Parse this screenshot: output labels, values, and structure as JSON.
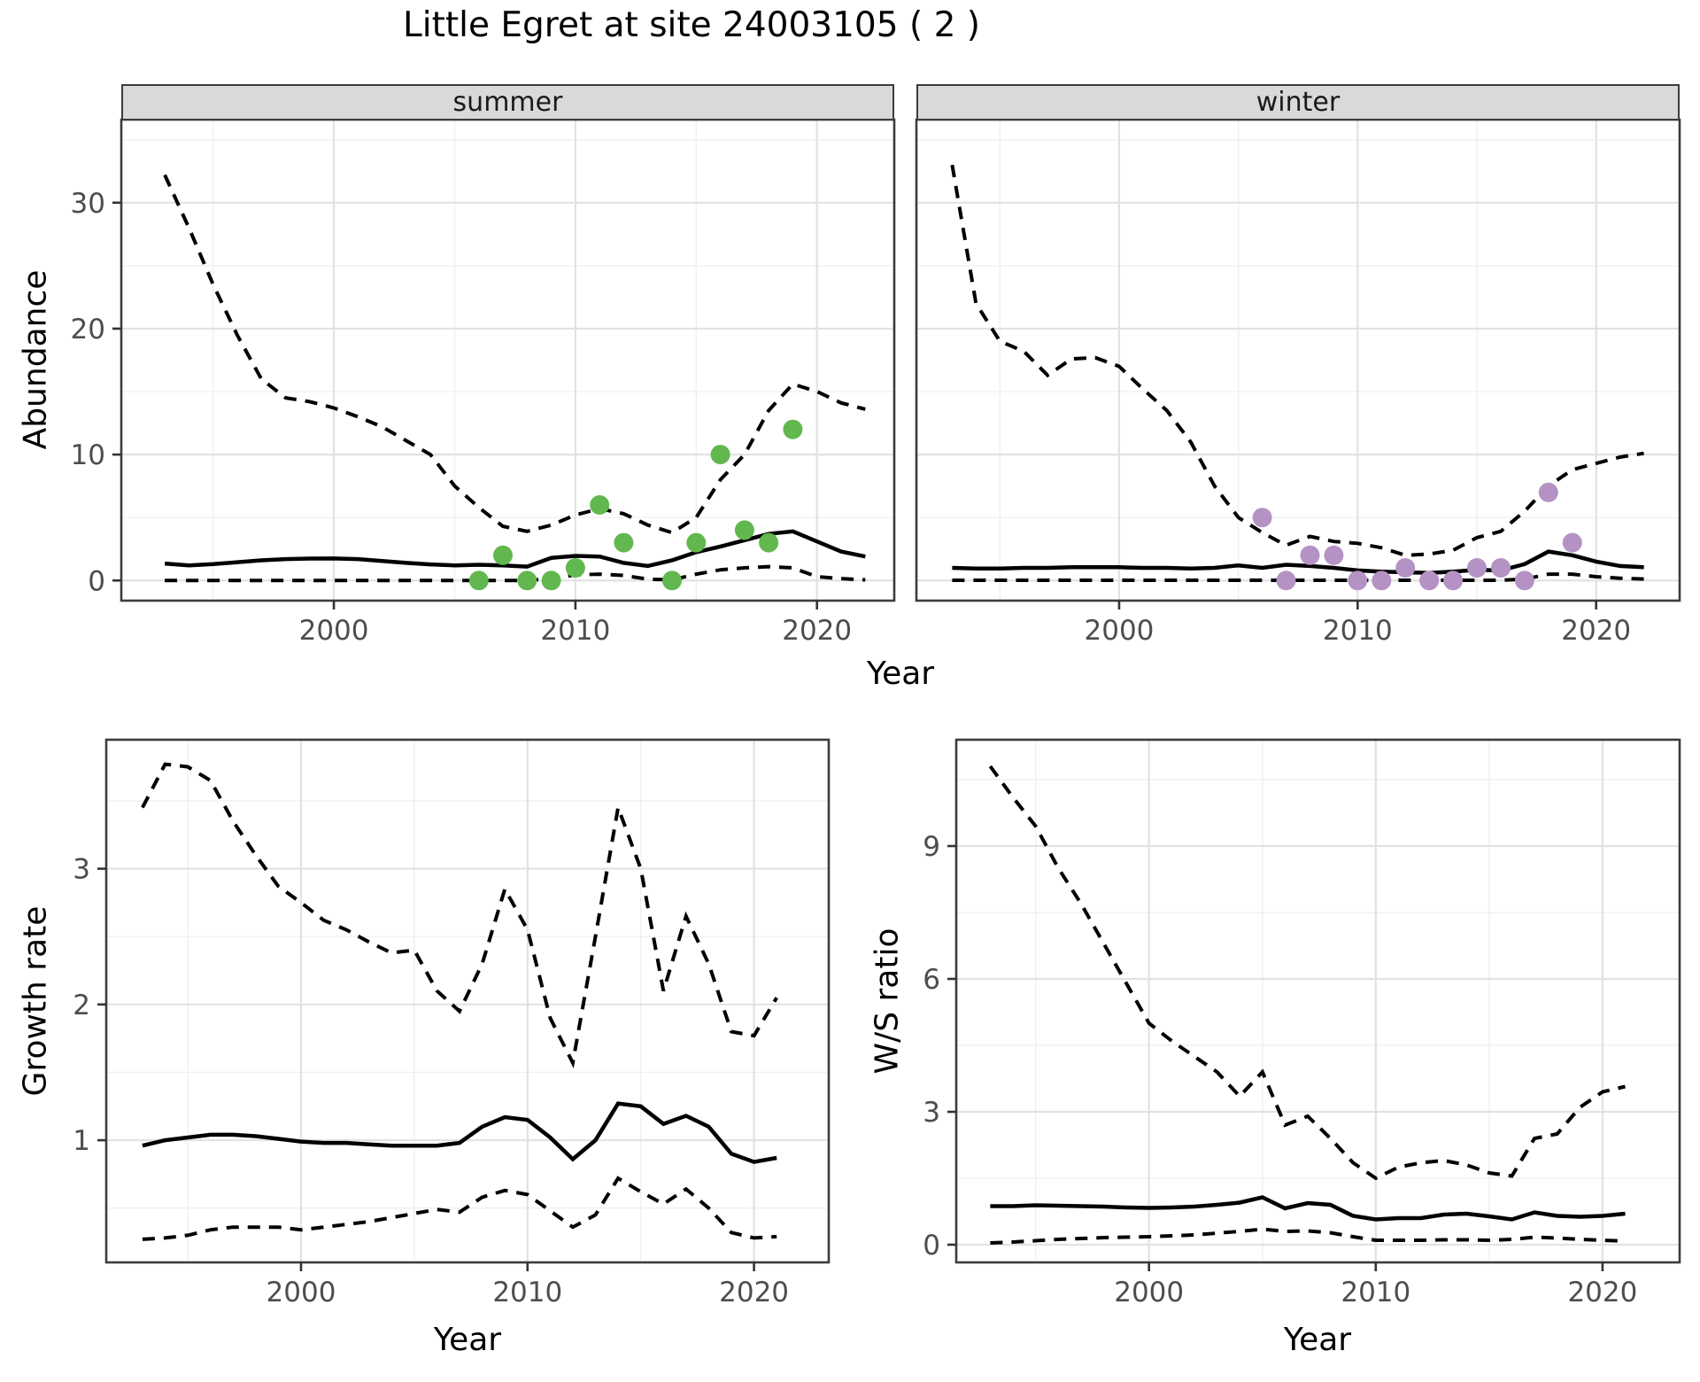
{
  "title": "Little Egret at site 24003105 ( 2 )",
  "labels": {
    "x_axis": "Year",
    "abundance_y": "Abundance",
    "growth_y": "Growth rate",
    "ws_y": "W/S ratio"
  },
  "colors": {
    "summer_points": "#62B74E",
    "winter_points": "#B492C4",
    "line": "#000000",
    "strip_bg": "#D9D9D9",
    "grid_major": "#E2E2E2",
    "grid_minor": "#F0F0F0",
    "panel_border": "#3C3C3C",
    "tick_text": "#4D4D4D"
  },
  "chart_data": [
    {
      "id": "abundance-summer",
      "type": "line",
      "facet_label": "summer",
      "xlabel": "Year",
      "ylabel": "Abundance",
      "xlim": [
        1991.2,
        2023.2
      ],
      "ylim": [
        -1.6,
        36.6
      ],
      "x_ticks": [
        2000,
        2010,
        2020
      ],
      "x_minor": [
        1995,
        2005,
        2015
      ],
      "y_ticks": [
        0,
        10,
        20,
        30
      ],
      "y_minor": [
        5,
        15,
        25,
        35
      ],
      "show_y_tick_labels": true,
      "x": [
        1993,
        1994,
        1995,
        1996,
        1997,
        1998,
        1999,
        2000,
        2001,
        2002,
        2003,
        2004,
        2005,
        2006,
        2007,
        2008,
        2009,
        2010,
        2011,
        2012,
        2013,
        2014,
        2015,
        2016,
        2017,
        2018,
        2019,
        2020,
        2021,
        2022
      ],
      "series": [
        {
          "name": "upper_ci",
          "style": "dashed",
          "values": [
            32.2,
            28.0,
            23.5,
            19.5,
            16.0,
            14.5,
            14.2,
            13.7,
            13.0,
            12.2,
            11.1,
            10.0,
            7.5,
            5.8,
            4.3,
            3.9,
            4.4,
            5.2,
            5.7,
            5.3,
            4.4,
            3.8,
            5.0,
            8.0,
            10.0,
            13.5,
            15.6,
            15.0,
            14.1,
            13.6
          ]
        },
        {
          "name": "mean",
          "style": "solid",
          "values": [
            1.35,
            1.2,
            1.3,
            1.45,
            1.6,
            1.7,
            1.74,
            1.75,
            1.7,
            1.55,
            1.4,
            1.28,
            1.2,
            1.25,
            1.2,
            1.1,
            1.8,
            1.95,
            1.9,
            1.4,
            1.15,
            1.6,
            2.25,
            2.7,
            3.2,
            3.7,
            3.9,
            3.1,
            2.3,
            1.9
          ]
        },
        {
          "name": "lower_ci",
          "style": "dashed",
          "values": [
            0,
            0,
            0,
            0,
            0,
            0,
            0,
            0,
            0,
            0,
            0,
            0,
            0,
            0,
            0,
            0,
            0.15,
            0.45,
            0.5,
            0.4,
            0.1,
            0.05,
            0.5,
            0.85,
            1.0,
            1.1,
            1.0,
            0.3,
            0.15,
            0.05
          ]
        }
      ],
      "points": [
        [
          2006,
          0
        ],
        [
          2007,
          2
        ],
        [
          2008,
          0
        ],
        [
          2009,
          0
        ],
        [
          2010,
          1
        ],
        [
          2011,
          6
        ],
        [
          2012,
          3
        ],
        [
          2014,
          0
        ],
        [
          2015,
          3
        ],
        [
          2016,
          10
        ],
        [
          2017,
          4
        ],
        [
          2018,
          3
        ],
        [
          2019,
          12
        ]
      ],
      "point_color_key": "summer_points"
    },
    {
      "id": "abundance-winter",
      "type": "line",
      "facet_label": "winter",
      "xlabel": "Year",
      "ylabel": "Abundance",
      "xlim": [
        1991.5,
        2023.5
      ],
      "ylim": [
        -1.6,
        36.6
      ],
      "x_ticks": [
        2000,
        2010,
        2020
      ],
      "x_minor": [
        1995,
        2005,
        2015
      ],
      "y_ticks": [
        0,
        10,
        20,
        30
      ],
      "y_minor": [
        5,
        15,
        25,
        35
      ],
      "show_y_tick_labels": false,
      "x": [
        1993,
        1994,
        1995,
        1996,
        1997,
        1998,
        1999,
        2000,
        2001,
        2002,
        2003,
        2004,
        2005,
        2006,
        2007,
        2008,
        2009,
        2010,
        2011,
        2012,
        2013,
        2014,
        2015,
        2016,
        2017,
        2018,
        2019,
        2020,
        2021,
        2022
      ],
      "series": [
        {
          "name": "upper_ci",
          "style": "dashed",
          "values": [
            33.0,
            22.0,
            19.0,
            18.2,
            16.3,
            17.6,
            17.7,
            17.0,
            15.2,
            13.5,
            11.0,
            7.5,
            5.0,
            3.8,
            2.8,
            3.5,
            3.1,
            2.95,
            2.6,
            2.0,
            2.1,
            2.4,
            3.4,
            3.9,
            5.5,
            7.5,
            8.8,
            9.3,
            9.8,
            10.1
          ]
        },
        {
          "name": "mean",
          "style": "solid",
          "values": [
            1.0,
            0.95,
            0.95,
            1.0,
            1.0,
            1.05,
            1.05,
            1.05,
            1.0,
            1.0,
            0.95,
            1.0,
            1.2,
            1.0,
            1.25,
            1.15,
            1.0,
            0.8,
            0.7,
            0.65,
            0.6,
            0.7,
            0.85,
            0.8,
            1.3,
            2.3,
            2.0,
            1.5,
            1.15,
            1.05
          ]
        },
        {
          "name": "lower_ci",
          "style": "dashed",
          "values": [
            0.02,
            0.02,
            0.02,
            0.02,
            0.02,
            0.02,
            0.02,
            0.02,
            0.02,
            0.02,
            0.02,
            0.02,
            0.02,
            0.02,
            0.02,
            0.02,
            0.02,
            0.02,
            0.02,
            0.02,
            0.02,
            0.02,
            0.02,
            0.02,
            0.1,
            0.5,
            0.5,
            0.3,
            0.18,
            0.12
          ]
        }
      ],
      "points": [
        [
          2006,
          5
        ],
        [
          2007,
          0
        ],
        [
          2008,
          2
        ],
        [
          2009,
          2
        ],
        [
          2010,
          0
        ],
        [
          2011,
          0
        ],
        [
          2012,
          1
        ],
        [
          2013,
          0
        ],
        [
          2014,
          0
        ],
        [
          2015,
          1
        ],
        [
          2016,
          1
        ],
        [
          2017,
          0
        ],
        [
          2018,
          7
        ],
        [
          2019,
          3
        ]
      ],
      "point_color_key": "winter_points"
    },
    {
      "id": "growth",
      "type": "line",
      "facet_label": null,
      "xlabel": "Year",
      "ylabel": "Growth rate",
      "xlim": [
        1991.4,
        2023.3
      ],
      "ylim": [
        0.1,
        3.95
      ],
      "x_ticks": [
        2000,
        2010,
        2020
      ],
      "x_minor": [
        1995,
        2005,
        2015
      ],
      "y_ticks": [
        1,
        2,
        3
      ],
      "y_minor": [
        0.5,
        1.5,
        2.5,
        3.5
      ],
      "show_y_tick_labels": true,
      "x": [
        1993,
        1994,
        1995,
        1996,
        1997,
        1998,
        1999,
        2000,
        2001,
        2002,
        2003,
        2004,
        2005,
        2006,
        2007,
        2008,
        2009,
        2010,
        2011,
        2012,
        2013,
        2014,
        2015,
        2016,
        2017,
        2018,
        2019,
        2020,
        2021
      ],
      "series": [
        {
          "name": "upper_ci",
          "style": "dashed",
          "values": [
            3.45,
            3.77,
            3.75,
            3.65,
            3.35,
            3.1,
            2.87,
            2.75,
            2.62,
            2.55,
            2.46,
            2.38,
            2.4,
            2.1,
            1.95,
            2.3,
            2.85,
            2.55,
            1.9,
            1.57,
            2.5,
            3.45,
            3.0,
            2.1,
            2.65,
            2.3,
            1.8,
            1.77,
            2.05
          ]
        },
        {
          "name": "mean",
          "style": "solid",
          "values": [
            0.96,
            1.0,
            1.02,
            1.04,
            1.04,
            1.03,
            1.01,
            0.99,
            0.98,
            0.98,
            0.97,
            0.96,
            0.96,
            0.96,
            0.98,
            1.1,
            1.17,
            1.15,
            1.02,
            0.86,
            1.0,
            1.27,
            1.25,
            1.12,
            1.18,
            1.1,
            0.9,
            0.84,
            0.87
          ]
        },
        {
          "name": "lower_ci",
          "style": "dashed",
          "values": [
            0.27,
            0.28,
            0.3,
            0.34,
            0.36,
            0.36,
            0.36,
            0.34,
            0.36,
            0.38,
            0.4,
            0.43,
            0.46,
            0.49,
            0.47,
            0.58,
            0.63,
            0.6,
            0.48,
            0.36,
            0.45,
            0.72,
            0.62,
            0.53,
            0.64,
            0.5,
            0.32,
            0.28,
            0.29
          ]
        }
      ],
      "points": null,
      "point_color_key": null
    },
    {
      "id": "ws",
      "type": "line",
      "facet_label": null,
      "xlabel": "Year",
      "ylabel": "W/S ratio",
      "xlim": [
        1991.5,
        2023.4
      ],
      "ylim": [
        -0.4,
        11.4
      ],
      "x_ticks": [
        2000,
        2010,
        2020
      ],
      "x_minor": [
        1995,
        2005,
        2015
      ],
      "y_ticks": [
        0,
        3,
        6,
        9
      ],
      "y_minor": [
        1.5,
        4.5,
        7.5,
        10.5
      ],
      "show_y_tick_labels": true,
      "x": [
        1993,
        1994,
        1995,
        1996,
        1997,
        1998,
        1999,
        2000,
        2001,
        2002,
        2003,
        2004,
        2005,
        2006,
        2007,
        2008,
        2009,
        2010,
        2011,
        2012,
        2013,
        2014,
        2015,
        2016,
        2017,
        2018,
        2019,
        2020,
        2021
      ],
      "series": [
        {
          "name": "upper_ci",
          "style": "dashed",
          "values": [
            10.8,
            10.1,
            9.45,
            8.5,
            7.7,
            6.8,
            5.9,
            5.0,
            4.6,
            4.25,
            3.9,
            3.35,
            3.9,
            2.7,
            2.9,
            2.4,
            1.85,
            1.5,
            1.75,
            1.85,
            1.9,
            1.8,
            1.62,
            1.55,
            2.4,
            2.5,
            3.1,
            3.45,
            3.57
          ]
        },
        {
          "name": "mean",
          "style": "solid",
          "values": [
            0.87,
            0.87,
            0.89,
            0.88,
            0.87,
            0.86,
            0.84,
            0.83,
            0.84,
            0.86,
            0.9,
            0.95,
            1.07,
            0.82,
            0.94,
            0.9,
            0.65,
            0.57,
            0.6,
            0.6,
            0.68,
            0.7,
            0.64,
            0.57,
            0.73,
            0.65,
            0.63,
            0.65,
            0.7
          ]
        },
        {
          "name": "lower_ci",
          "style": "dashed",
          "values": [
            0.04,
            0.06,
            0.09,
            0.12,
            0.14,
            0.16,
            0.17,
            0.18,
            0.2,
            0.22,
            0.26,
            0.3,
            0.35,
            0.3,
            0.31,
            0.27,
            0.18,
            0.1,
            0.1,
            0.1,
            0.11,
            0.11,
            0.1,
            0.12,
            0.17,
            0.15,
            0.12,
            0.1,
            0.08
          ]
        }
      ],
      "points": null,
      "point_color_key": null
    }
  ]
}
